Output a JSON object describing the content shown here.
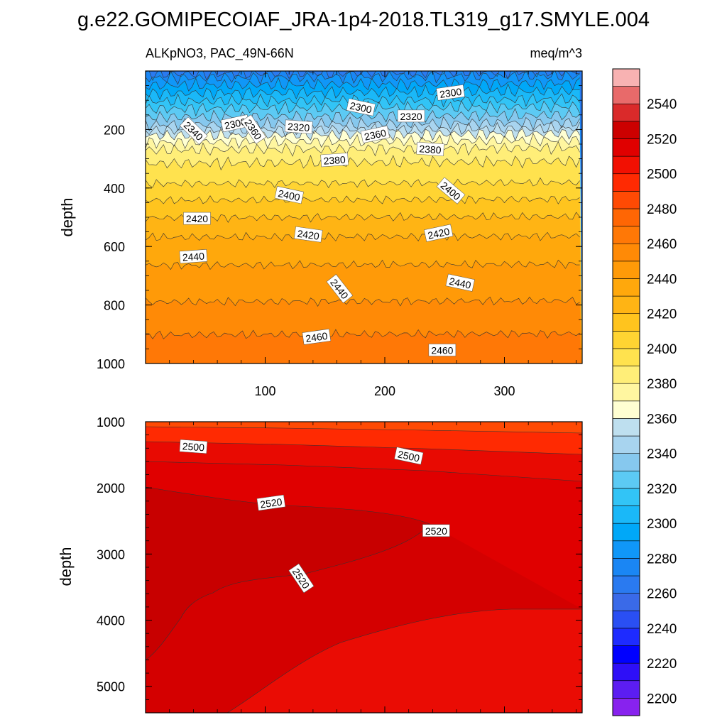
{
  "figure_title": "g.e22.GOMIPECOIAF_JRA-1p4-2018.TL319_g17.SMYLE.004",
  "chart_data": [
    {
      "type": "contour",
      "panel": "upper",
      "left_label": "ALKpNO3, PAC_49N-66N",
      "right_label": "meq/m^3",
      "ylabel": "depth",
      "xlim": [
        0,
        365
      ],
      "ylim": [
        1000,
        0
      ],
      "y_reversed": true,
      "xticks": [
        100,
        200,
        300
      ],
      "yticks": [
        200,
        400,
        600,
        800,
        1000
      ],
      "field": {
        "depths": [
          0,
          20,
          40,
          60,
          80,
          100,
          120,
          140,
          160,
          180,
          200,
          220,
          240,
          260,
          280,
          300,
          350,
          400,
          450,
          500,
          550,
          600,
          650,
          700,
          750,
          800,
          850,
          900,
          950,
          1000
        ],
        "values": [
          2265,
          2280,
          2288,
          2295,
          2303,
          2310,
          2318,
          2325,
          2332,
          2340,
          2350,
          2362,
          2370,
          2378,
          2384,
          2388,
          2396,
          2402,
          2412,
          2420,
          2428,
          2434,
          2439,
          2443,
          2447,
          2451,
          2455,
          2460,
          2464,
          2468
        ],
        "x_tilt_per_unit": 0.012
      },
      "contour_labels": [
        {
          "text": "2300",
          "x": 75,
          "y": 180
        },
        {
          "text": "2340",
          "x": 40,
          "y": 205
        },
        {
          "text": "2320",
          "x": 128,
          "y": 192
        },
        {
          "text": "2300",
          "x": 180,
          "y": 125
        },
        {
          "text": "2300",
          "x": 255,
          "y": 75
        },
        {
          "text": "2320",
          "x": 222,
          "y": 155
        },
        {
          "text": "2360",
          "x": 90,
          "y": 200
        },
        {
          "text": "2360",
          "x": 192,
          "y": 218
        },
        {
          "text": "2380",
          "x": 158,
          "y": 305
        },
        {
          "text": "2380",
          "x": 238,
          "y": 268
        },
        {
          "text": "2400",
          "x": 120,
          "y": 425
        },
        {
          "text": "2400",
          "x": 255,
          "y": 410
        },
        {
          "text": "2420",
          "x": 43,
          "y": 505
        },
        {
          "text": "2420",
          "x": 136,
          "y": 560
        },
        {
          "text": "2420",
          "x": 245,
          "y": 555
        },
        {
          "text": "2440",
          "x": 40,
          "y": 635
        },
        {
          "text": "2440",
          "x": 162,
          "y": 745
        },
        {
          "text": "2440",
          "x": 263,
          "y": 725
        },
        {
          "text": "2460",
          "x": 143,
          "y": 910
        },
        {
          "text": "2460",
          "x": 248,
          "y": 955
        }
      ]
    },
    {
      "type": "contour",
      "panel": "lower",
      "ylabel": "depth",
      "xlim": [
        0,
        365
      ],
      "ylim": [
        5400,
        1000
      ],
      "y_reversed": true,
      "xticks": [
        100,
        200,
        300
      ],
      "yticks": [
        1000,
        2000,
        3000,
        4000,
        5000
      ],
      "contour_labels": [
        {
          "text": "2500",
          "x": 40,
          "y": 1380
        },
        {
          "text": "2500",
          "x": 220,
          "y": 1520
        },
        {
          "text": "2520",
          "x": 105,
          "y": 2230
        },
        {
          "text": "2520",
          "x": 243,
          "y": 2650
        },
        {
          "text": "2520",
          "x": 130,
          "y": 3370
        }
      ]
    }
  ],
  "colorbar": {
    "levels": [
      2200,
      2210,
      2220,
      2230,
      2240,
      2250,
      2260,
      2270,
      2280,
      2290,
      2300,
      2310,
      2320,
      2330,
      2340,
      2350,
      2360,
      2370,
      2380,
      2390,
      2400,
      2410,
      2420,
      2430,
      2440,
      2450,
      2460,
      2470,
      2480,
      2490,
      2500,
      2510,
      2520,
      2530,
      2540,
      2550
    ],
    "colors": [
      "#8822ee",
      "#5c1df2",
      "#2e0ff7",
      "#0000ff",
      "#1e2bff",
      "#2a4ff3",
      "#3a6ae8",
      "#2a7af0",
      "#1a86f4",
      "#1097f8",
      "#00a8f8",
      "#1ab8f8",
      "#32c4f6",
      "#5ccaf4",
      "#86c8ee",
      "#a8d4ef",
      "#bedfef",
      "#ffffd2",
      "#fff6a0",
      "#ffee78",
      "#ffe24e",
      "#ffd432",
      "#ffc41e",
      "#ffb414",
      "#ffa80c",
      "#ff9a08",
      "#ff8a06",
      "#ff7806",
      "#ff6604",
      "#ff4a04",
      "#ff2a02",
      "#f21002",
      "#e00000",
      "#cc0000",
      "#da2a2a",
      "#e86a6a",
      "#f8b2b2"
    ],
    "label_levels": [
      "2200",
      "2220",
      "2240",
      "2260",
      "2280",
      "2300",
      "2320",
      "2340",
      "2360",
      "2380",
      "2400",
      "2420",
      "2440",
      "2460",
      "2480",
      "2500",
      "2520",
      "2540"
    ]
  }
}
